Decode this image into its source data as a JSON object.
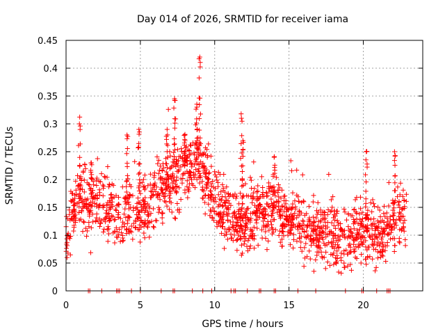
{
  "chart_data": {
    "type": "scatter",
    "title": "Day 014 of 2026, SRMTID for receiver iama",
    "xlabel": "GPS time / hours",
    "ylabel": "SRMTID / TECUs",
    "xlim": [
      0,
      24
    ],
    "ylim": [
      0,
      0.45
    ],
    "xticks": [
      "0",
      "5",
      "10",
      "15",
      "20"
    ],
    "yticks": [
      "0",
      "0.05",
      "0.1",
      "0.15",
      "0.2",
      "0.25",
      "0.3",
      "0.35",
      "0.4",
      "0.45"
    ],
    "grid": true,
    "marker": "plus",
    "color": "#ff0000",
    "trend": [
      {
        "x": 0.0,
        "y": 0.1
      },
      {
        "x": 0.5,
        "y": 0.14
      },
      {
        "x": 1.0,
        "y": 0.17
      },
      {
        "x": 1.5,
        "y": 0.15
      },
      {
        "x": 2.0,
        "y": 0.16
      },
      {
        "x": 2.5,
        "y": 0.15
      },
      {
        "x": 3.0,
        "y": 0.15
      },
      {
        "x": 3.5,
        "y": 0.13
      },
      {
        "x": 4.0,
        "y": 0.13
      },
      {
        "x": 4.5,
        "y": 0.14
      },
      {
        "x": 5.0,
        "y": 0.14
      },
      {
        "x": 5.5,
        "y": 0.15
      },
      {
        "x": 6.0,
        "y": 0.17
      },
      {
        "x": 6.5,
        "y": 0.18
      },
      {
        "x": 7.0,
        "y": 0.19
      },
      {
        "x": 7.5,
        "y": 0.21
      },
      {
        "x": 8.0,
        "y": 0.22
      },
      {
        "x": 8.5,
        "y": 0.22
      },
      {
        "x": 9.0,
        "y": 0.23
      },
      {
        "x": 9.5,
        "y": 0.19
      },
      {
        "x": 10.0,
        "y": 0.16
      },
      {
        "x": 10.5,
        "y": 0.15
      },
      {
        "x": 11.0,
        "y": 0.13
      },
      {
        "x": 11.5,
        "y": 0.13
      },
      {
        "x": 12.0,
        "y": 0.12
      },
      {
        "x": 12.5,
        "y": 0.14
      },
      {
        "x": 13.0,
        "y": 0.14
      },
      {
        "x": 13.5,
        "y": 0.14
      },
      {
        "x": 14.0,
        "y": 0.15
      },
      {
        "x": 14.5,
        "y": 0.14
      },
      {
        "x": 15.0,
        "y": 0.13
      },
      {
        "x": 15.5,
        "y": 0.13
      },
      {
        "x": 16.0,
        "y": 0.12
      },
      {
        "x": 16.5,
        "y": 0.11
      },
      {
        "x": 17.0,
        "y": 0.11
      },
      {
        "x": 17.5,
        "y": 0.1
      },
      {
        "x": 18.0,
        "y": 0.1
      },
      {
        "x": 18.5,
        "y": 0.09
      },
      {
        "x": 19.0,
        "y": 0.09
      },
      {
        "x": 19.5,
        "y": 0.1
      },
      {
        "x": 20.0,
        "y": 0.11
      },
      {
        "x": 20.5,
        "y": 0.1
      },
      {
        "x": 21.0,
        "y": 0.09
      },
      {
        "x": 21.5,
        "y": 0.09
      },
      {
        "x": 22.0,
        "y": 0.12
      },
      {
        "x": 22.5,
        "y": 0.13
      },
      {
        "x": 22.9,
        "y": 0.13
      }
    ],
    "spread": 0.045,
    "data_range": [
      0.0,
      22.9
    ],
    "spikes": [
      {
        "x": 0.9,
        "y": 0.3
      },
      {
        "x": 1.7,
        "y": 0.23
      },
      {
        "x": 4.1,
        "y": 0.28
      },
      {
        "x": 4.9,
        "y": 0.29
      },
      {
        "x": 6.8,
        "y": 0.29
      },
      {
        "x": 7.3,
        "y": 0.345
      },
      {
        "x": 8.0,
        "y": 0.28
      },
      {
        "x": 8.8,
        "y": 0.33
      },
      {
        "x": 9.0,
        "y": 0.42
      },
      {
        "x": 11.8,
        "y": 0.31
      },
      {
        "x": 11.9,
        "y": 0.27
      },
      {
        "x": 14.0,
        "y": 0.24
      },
      {
        "x": 20.2,
        "y": 0.25
      },
      {
        "x": 22.1,
        "y": 0.25
      }
    ],
    "zero_points_x": [
      1.5,
      1.6,
      2.4,
      3.4,
      3.5,
      3.6,
      4.4,
      5.0,
      6.4,
      7.2,
      7.3,
      8.5,
      9.2,
      9.8,
      11.1,
      11.3,
      11.4,
      12.2,
      13.0,
      13.1,
      14.0,
      14.1,
      15.6,
      16.8,
      18.8,
      19.9,
      20.0,
      20.9,
      21.6,
      21.7,
      21.8
    ]
  }
}
